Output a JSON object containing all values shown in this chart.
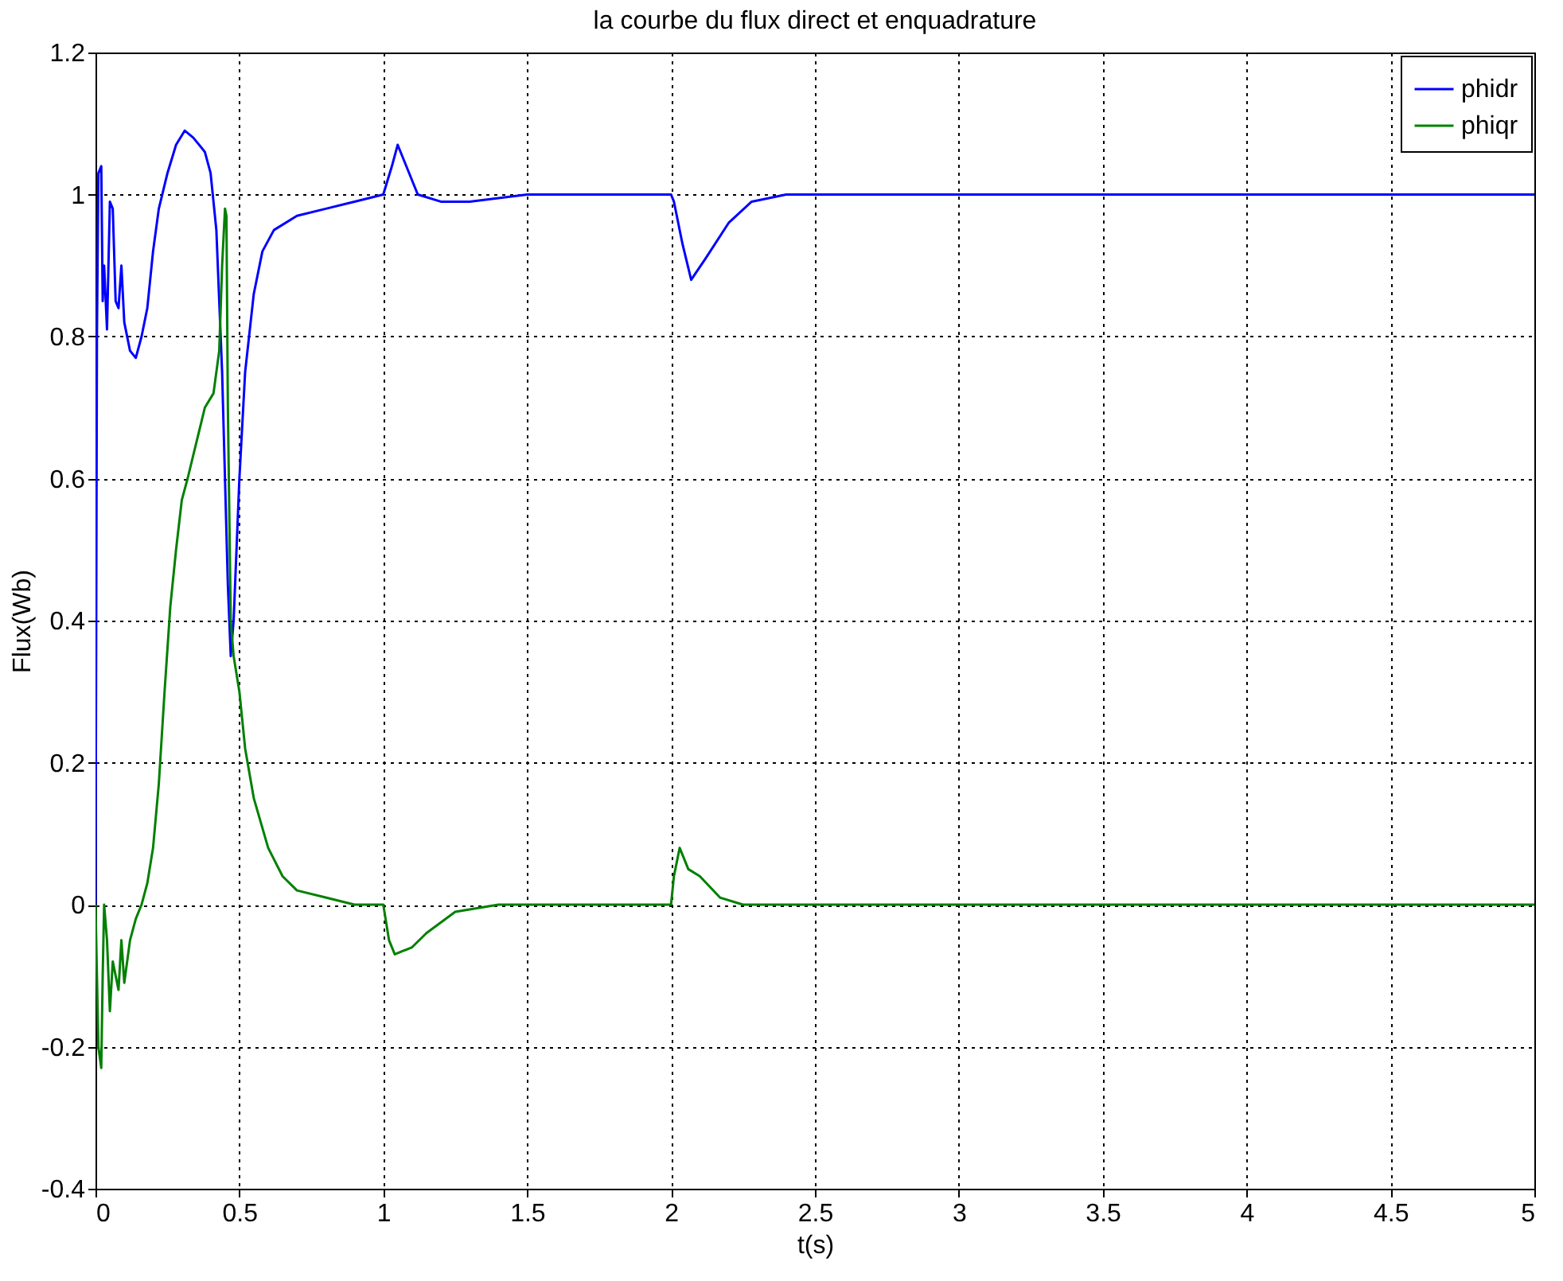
{
  "chart_data": {
    "type": "line",
    "title": "la courbe du flux direct et enquadrature",
    "xlabel": "t(s)",
    "ylabel": "Flux(Wb)",
    "xlim": [
      0,
      5
    ],
    "xticks": [
      0,
      0.5,
      1,
      1.5,
      2,
      2.5,
      3,
      3.5,
      4,
      4.5,
      5
    ],
    "ylim": [
      -0.4,
      1.2
    ],
    "yticks": [
      -0.4,
      -0.2,
      0,
      0.2,
      0.4,
      0.6,
      0.8,
      1,
      1.2
    ],
    "grid": true,
    "legend": "top right",
    "line_style": "solid",
    "marker": "none",
    "series": [
      {
        "name": "phidr",
        "color": "#0000ff",
        "x": [
          0,
          0.005,
          0.01,
          0.02,
          0.025,
          0.03,
          0.04,
          0.05,
          0.06,
          0.07,
          0.08,
          0.09,
          0.1,
          0.12,
          0.14,
          0.16,
          0.18,
          0.2,
          0.22,
          0.25,
          0.28,
          0.31,
          0.34,
          0.38,
          0.4,
          0.42,
          0.44,
          0.45,
          0.46,
          0.47,
          0.48,
          0.49,
          0.5,
          0.52,
          0.55,
          0.58,
          0.62,
          0.7,
          0.8,
          0.9,
          1.0,
          1.03,
          1.05,
          1.08,
          1.12,
          1.2,
          1.3,
          1.5,
          1.7,
          2.0,
          2.01,
          2.04,
          2.07,
          2.12,
          2.2,
          2.28,
          2.4,
          2.6,
          3.0,
          3.5,
          4.0,
          4.5,
          5.0
        ],
        "values": [
          0,
          0.8,
          1.03,
          1.04,
          0.85,
          0.9,
          0.81,
          0.99,
          0.98,
          0.85,
          0.84,
          0.9,
          0.82,
          0.78,
          0.77,
          0.8,
          0.84,
          0.92,
          0.98,
          1.03,
          1.07,
          1.09,
          1.08,
          1.06,
          1.03,
          0.95,
          0.75,
          0.6,
          0.45,
          0.35,
          0.4,
          0.5,
          0.6,
          0.75,
          0.86,
          0.92,
          0.95,
          0.97,
          0.98,
          0.99,
          1.0,
          1.04,
          1.07,
          1.04,
          1.0,
          0.99,
          0.99,
          1.0,
          1.0,
          1.0,
          0.99,
          0.93,
          0.88,
          0.91,
          0.96,
          0.99,
          1.0,
          1.0,
          1.0,
          1.0,
          1.0,
          1.0,
          1.0
        ]
      },
      {
        "name": "phiqr",
        "color": "#008000",
        "x": [
          0,
          0.005,
          0.01,
          0.02,
          0.025,
          0.03,
          0.04,
          0.05,
          0.06,
          0.07,
          0.08,
          0.09,
          0.1,
          0.12,
          0.14,
          0.16,
          0.18,
          0.2,
          0.22,
          0.24,
          0.26,
          0.28,
          0.3,
          0.32,
          0.35,
          0.38,
          0.41,
          0.43,
          0.44,
          0.45,
          0.455,
          0.46,
          0.47,
          0.48,
          0.5,
          0.52,
          0.55,
          0.6,
          0.65,
          0.7,
          0.8,
          0.9,
          1.0,
          1.02,
          1.04,
          1.1,
          1.15,
          1.25,
          1.4,
          1.7,
          2.0,
          2.01,
          2.03,
          2.06,
          2.1,
          2.17,
          2.25,
          2.5,
          3,
          4,
          5
        ],
        "values": [
          0,
          -0.1,
          -0.2,
          -0.23,
          -0.1,
          0.0,
          -0.05,
          -0.15,
          -0.08,
          -0.1,
          -0.12,
          -0.05,
          -0.11,
          -0.05,
          -0.02,
          0.0,
          0.03,
          0.08,
          0.17,
          0.3,
          0.42,
          0.5,
          0.57,
          0.6,
          0.65,
          0.7,
          0.72,
          0.78,
          0.9,
          0.98,
          0.97,
          0.7,
          0.4,
          0.35,
          0.3,
          0.22,
          0.15,
          0.08,
          0.04,
          0.02,
          0.01,
          0.0,
          0.0,
          -0.05,
          -0.07,
          -0.06,
          -0.04,
          -0.01,
          0.0,
          0.0,
          0.0,
          0.04,
          0.08,
          0.05,
          0.04,
          0.01,
          0.0,
          0.0,
          0,
          0,
          0
        ]
      }
    ]
  }
}
